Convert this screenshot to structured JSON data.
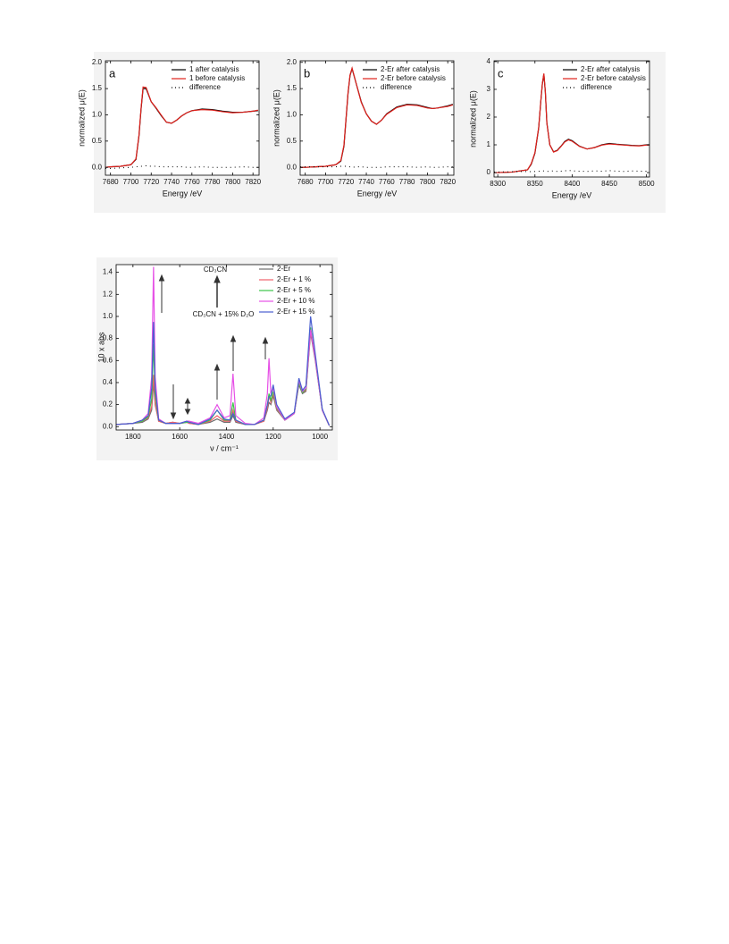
{
  "chart_data": [
    {
      "type": "line",
      "label": "a",
      "x_label": "Energy /eV",
      "y_label": "normalized μ(E)",
      "x": [
        7675,
        7680,
        7690,
        7700,
        7705,
        7708,
        7710,
        7712,
        7715,
        7720,
        7725,
        7730,
        7735,
        7740,
        7745,
        7750,
        7755,
        7760,
        7770,
        7780,
        7790,
        7800,
        7810,
        7820,
        7825
      ],
      "series": [
        {
          "name": "1  after catalysis",
          "color": "#000000",
          "line_style": "solid",
          "values": [
            0.0,
            0.01,
            0.02,
            0.05,
            0.15,
            0.6,
            1.1,
            1.5,
            1.5,
            1.25,
            1.12,
            0.98,
            0.86,
            0.84,
            0.9,
            0.98,
            1.04,
            1.08,
            1.11,
            1.1,
            1.07,
            1.05,
            1.05,
            1.07,
            1.08
          ]
        },
        {
          "name": "1  before catalysis",
          "color": "#e0201b",
          "line_style": "solid",
          "values": [
            0.0,
            0.01,
            0.02,
            0.05,
            0.16,
            0.62,
            1.12,
            1.53,
            1.52,
            1.25,
            1.13,
            0.99,
            0.86,
            0.84,
            0.9,
            0.98,
            1.04,
            1.08,
            1.1,
            1.09,
            1.06,
            1.04,
            1.05,
            1.07,
            1.09
          ]
        },
        {
          "name": "difference",
          "color": "#000000",
          "line_style": "dotted",
          "values": [
            -0.02,
            -0.02,
            -0.01,
            0.0,
            0.01,
            0.02,
            0.02,
            0.02,
            0.03,
            0.02,
            0.02,
            0.01,
            0.01,
            0.01,
            0.01,
            0.01,
            0.0,
            0.0,
            0.01,
            0.0,
            0.0,
            0.0,
            0.01,
            0.0,
            0.0
          ]
        }
      ],
      "xlim": [
        7675,
        7826
      ],
      "xticks": [
        7680,
        7700,
        7720,
        7740,
        7760,
        7780,
        7800,
        7820
      ],
      "ylim": [
        -0.15,
        2.03
      ],
      "yticks": [
        {
          "value": 0,
          "label": "0.0"
        },
        {
          "value": 0.5,
          "label": "0.5"
        },
        {
          "value": 1,
          "label": "1.0"
        },
        {
          "value": 1.5,
          "label": "1.5"
        },
        {
          "value": 2,
          "label": "2.0"
        }
      ],
      "legend": "top-right"
    },
    {
      "type": "line",
      "label": "b",
      "x_label": "Energy /eV",
      "y_label": "normalized μ(E)",
      "x": [
        7675,
        7680,
        7690,
        7700,
        7710,
        7715,
        7718,
        7720,
        7722,
        7724,
        7726,
        7730,
        7735,
        7740,
        7745,
        7750,
        7755,
        7760,
        7770,
        7780,
        7790,
        7800,
        7805,
        7810,
        7820,
        7825
      ],
      "series": [
        {
          "name": "2-Er after catalysis",
          "color": "#000000",
          "line_style": "solid",
          "values": [
            0.0,
            0.0,
            0.01,
            0.02,
            0.05,
            0.12,
            0.4,
            0.9,
            1.4,
            1.75,
            1.88,
            1.6,
            1.25,
            1.02,
            0.88,
            0.82,
            0.9,
            1.02,
            1.15,
            1.2,
            1.19,
            1.14,
            1.12,
            1.13,
            1.17,
            1.2
          ]
        },
        {
          "name": "2-Er before catalysis",
          "color": "#e0201b",
          "line_style": "solid",
          "values": [
            0.0,
            0.0,
            0.01,
            0.02,
            0.05,
            0.13,
            0.42,
            0.92,
            1.42,
            1.76,
            1.89,
            1.6,
            1.24,
            1.02,
            0.88,
            0.82,
            0.9,
            1.01,
            1.14,
            1.19,
            1.18,
            1.13,
            1.12,
            1.13,
            1.16,
            1.19
          ]
        },
        {
          "name": "difference",
          "color": "#000000",
          "line_style": "dotted",
          "values": [
            0.01,
            0.01,
            0.01,
            0.01,
            0.01,
            0.02,
            0.02,
            0.02,
            0.01,
            0.01,
            0.0,
            0.01,
            0.01,
            0.0,
            0.0,
            0.0,
            0.0,
            0.01,
            0.01,
            0.01,
            0.0,
            0.01,
            0.0,
            0.0,
            0.01,
            0.01
          ]
        }
      ],
      "xlim": [
        7675,
        7826
      ],
      "xticks": [
        7680,
        7700,
        7720,
        7740,
        7760,
        7780,
        7800,
        7820
      ],
      "ylim": [
        -0.15,
        2.03
      ],
      "yticks": [
        {
          "value": 0,
          "label": "0.0"
        },
        {
          "value": 0.5,
          "label": "0.5"
        },
        {
          "value": 1,
          "label": "1.0"
        },
        {
          "value": 1.5,
          "label": "1.5"
        },
        {
          "value": 2,
          "label": "2.0"
        }
      ],
      "legend": "top-right"
    },
    {
      "type": "line",
      "label": "c",
      "x_label": "Energy /eV",
      "y_label": "normalized μ(E)",
      "x": [
        8295,
        8300,
        8320,
        8340,
        8345,
        8350,
        8355,
        8358,
        8360,
        8362,
        8364,
        8366,
        8370,
        8375,
        8380,
        8385,
        8390,
        8395,
        8400,
        8410,
        8420,
        8430,
        8440,
        8450,
        8460,
        8470,
        8480,
        8490,
        8500,
        8504
      ],
      "series": [
        {
          "name": "2-Er after catalysis",
          "color": "#000000",
          "line_style": "solid",
          "values": [
            0.0,
            0.0,
            0.02,
            0.1,
            0.3,
            0.7,
            1.6,
            2.6,
            3.2,
            3.55,
            2.9,
            1.8,
            1.0,
            0.75,
            0.8,
            0.95,
            1.12,
            1.2,
            1.15,
            0.95,
            0.85,
            0.9,
            1.0,
            1.05,
            1.02,
            1.0,
            0.98,
            0.97,
            1.0,
            1.0
          ]
        },
        {
          "name": "2-Er before catalysis",
          "color": "#e0201b",
          "line_style": "solid",
          "values": [
            0.0,
            0.0,
            0.02,
            0.1,
            0.32,
            0.72,
            1.62,
            2.62,
            3.22,
            3.57,
            2.9,
            1.78,
            1.0,
            0.74,
            0.79,
            0.94,
            1.1,
            1.18,
            1.13,
            0.94,
            0.85,
            0.9,
            0.99,
            1.03,
            1.01,
            0.99,
            0.97,
            0.96,
            0.99,
            0.99
          ]
        },
        {
          "name": "difference",
          "color": "#000000",
          "line_style": "dotted",
          "values": [
            0.02,
            0.02,
            0.03,
            0.04,
            0.03,
            0.04,
            0.05,
            0.04,
            0.05,
            0.06,
            0.05,
            0.04,
            0.05,
            0.06,
            0.04,
            0.05,
            0.06,
            0.08,
            0.06,
            0.05,
            0.04,
            0.06,
            0.05,
            0.07,
            0.05,
            0.04,
            0.06,
            0.05,
            0.05,
            0.05
          ]
        }
      ],
      "xlim": [
        8295,
        8504
      ],
      "xticks": [
        8300,
        8350,
        8400,
        8450,
        8500
      ],
      "ylim": [
        -0.16,
        4.03
      ],
      "yticks": [
        0,
        1,
        2,
        3,
        4
      ],
      "legend": "top-right"
    },
    {
      "type": "line",
      "x_label": "ν / cm⁻¹",
      "y_label": "10 x abs",
      "annotations": [
        "CD₃CN",
        "CD₃CN + 15% D₂O"
      ],
      "x": [
        1872,
        1800,
        1760,
        1735,
        1720,
        1712,
        1705,
        1690,
        1660,
        1630,
        1600,
        1570,
        1560,
        1520,
        1470,
        1440,
        1410,
        1385,
        1372,
        1360,
        1320,
        1280,
        1240,
        1225,
        1218,
        1210,
        1200,
        1185,
        1150,
        1110,
        1090,
        1075,
        1060,
        1040,
        1020,
        990,
        960
      ],
      "series": [
        {
          "name": "2-Er",
          "color": "#6e6e6e",
          "line_style": "solid",
          "values": [
            0.02,
            0.03,
            0.04,
            0.07,
            0.15,
            0.4,
            0.2,
            0.05,
            0.03,
            0.04,
            0.03,
            0.04,
            0.03,
            0.02,
            0.04,
            0.07,
            0.04,
            0.04,
            0.1,
            0.04,
            0.02,
            0.02,
            0.05,
            0.15,
            0.22,
            0.2,
            0.28,
            0.15,
            0.06,
            0.12,
            0.38,
            0.3,
            0.32,
            0.85,
            0.6,
            0.15,
            0.01
          ]
        },
        {
          "name": "2-Er  + 1 %",
          "color": "#f0606a",
          "line_style": "solid",
          "values": [
            0.02,
            0.03,
            0.05,
            0.08,
            0.18,
            0.47,
            0.22,
            0.05,
            0.03,
            0.04,
            0.03,
            0.04,
            0.03,
            0.02,
            0.05,
            0.1,
            0.05,
            0.05,
            0.15,
            0.05,
            0.02,
            0.02,
            0.05,
            0.17,
            0.28,
            0.22,
            0.3,
            0.16,
            0.06,
            0.12,
            0.4,
            0.31,
            0.33,
            0.87,
            0.62,
            0.15,
            0.01
          ]
        },
        {
          "name": "2-Er  + 5 %",
          "color": "#3cc44a",
          "line_style": "solid",
          "values": [
            0.02,
            0.03,
            0.05,
            0.09,
            0.25,
            0.75,
            0.3,
            0.06,
            0.03,
            0.03,
            0.03,
            0.04,
            0.04,
            0.02,
            0.06,
            0.15,
            0.06,
            0.06,
            0.22,
            0.06,
            0.02,
            0.02,
            0.06,
            0.2,
            0.3,
            0.24,
            0.32,
            0.17,
            0.06,
            0.12,
            0.4,
            0.31,
            0.34,
            0.9,
            0.63,
            0.15,
            0.01
          ]
        },
        {
          "name": "2-Er  + 10 %",
          "color": "#e64fe6",
          "line_style": "solid",
          "values": [
            0.02,
            0.03,
            0.06,
            0.12,
            0.45,
            1.45,
            0.45,
            0.07,
            0.03,
            0.03,
            0.03,
            0.05,
            0.05,
            0.03,
            0.08,
            0.2,
            0.08,
            0.1,
            0.48,
            0.1,
            0.03,
            0.02,
            0.08,
            0.3,
            0.62,
            0.3,
            0.35,
            0.18,
            0.06,
            0.12,
            0.42,
            0.32,
            0.35,
            0.88,
            0.62,
            0.15,
            0.01
          ]
        },
        {
          "name": "2-Er  + 15 %",
          "color": "#4a5fd0",
          "line_style": "solid",
          "values": [
            0.02,
            0.03,
            0.06,
            0.1,
            0.35,
            0.95,
            0.35,
            0.06,
            0.03,
            0.03,
            0.03,
            0.05,
            0.04,
            0.02,
            0.07,
            0.15,
            0.07,
            0.06,
            0.12,
            0.06,
            0.02,
            0.02,
            0.06,
            0.2,
            0.27,
            0.28,
            0.38,
            0.2,
            0.07,
            0.13,
            0.44,
            0.33,
            0.37,
            1.0,
            0.66,
            0.16,
            0.01
          ]
        }
      ],
      "xlim": [
        1872,
        947
      ],
      "xticks": [
        1800,
        1600,
        1400,
        1200,
        1000
      ],
      "ylim": [
        -0.03,
        1.47
      ],
      "yticks": [
        {
          "value": 0,
          "label": "0.0"
        },
        {
          "value": 0.2,
          "label": "0.2"
        },
        {
          "value": 0.4,
          "label": "0.4"
        },
        {
          "value": 0.6,
          "label": "0.6"
        },
        {
          "value": 0.8,
          "label": "0.8"
        },
        {
          "value": 1,
          "label": "1.0"
        },
        {
          "value": 1.2,
          "label": "1.2"
        },
        {
          "value": 1.4,
          "label": "1.4"
        }
      ],
      "legend": "top-right"
    }
  ]
}
